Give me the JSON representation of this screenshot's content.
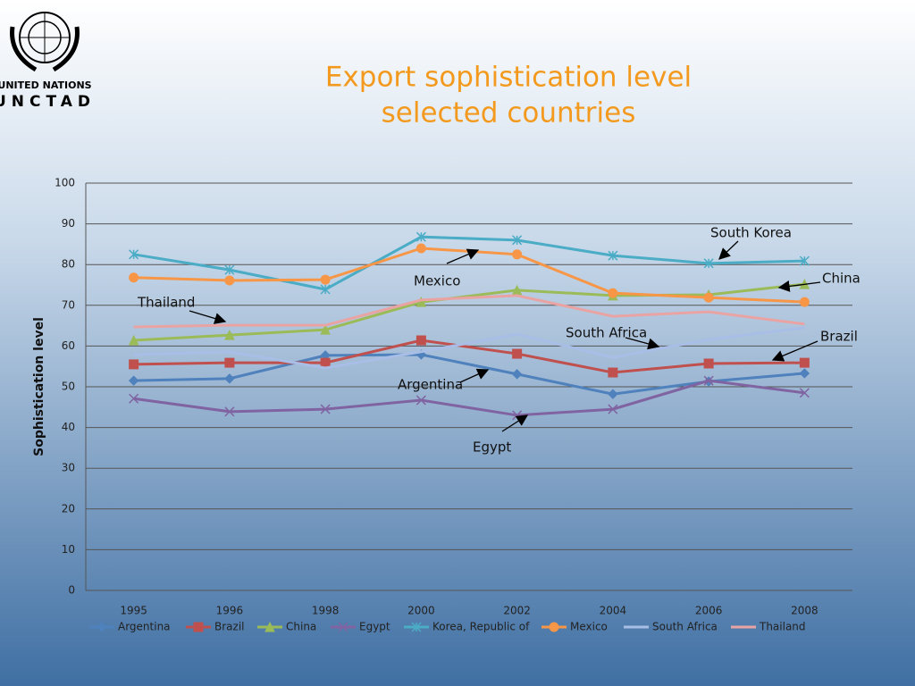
{
  "logo": {
    "line1": "UNITED NATIONS",
    "line2": "UNCTAD"
  },
  "chart_data": {
    "type": "line",
    "title": [
      "Export sophistication level",
      "selected countries"
    ],
    "y_label": "Sophistication level",
    "categories": [
      "1995",
      "1996",
      "1998",
      "2000",
      "2002",
      "2004",
      "2006",
      "2008"
    ],
    "ylim": [
      0,
      100
    ],
    "yticks": [
      0,
      10,
      20,
      30,
      40,
      50,
      60,
      70,
      80,
      90,
      100
    ],
    "grid": true,
    "legend": "bottom",
    "series": [
      {
        "name": "Argentina",
        "color": "#4f81bd",
        "marker": "diamond",
        "values": [
          51.5,
          52.0,
          57.7,
          57.9,
          53.1,
          48.2,
          51.3,
          53.3
        ]
      },
      {
        "name": "Brazil",
        "color": "#c0504d",
        "marker": "square",
        "values": [
          55.5,
          55.9,
          55.9,
          61.4,
          58.1,
          53.5,
          55.7,
          55.9
        ]
      },
      {
        "name": "China",
        "color": "#9bbb59",
        "marker": "triangle",
        "values": [
          61.4,
          62.7,
          64.0,
          70.8,
          73.7,
          72.4,
          72.6,
          75.2
        ]
      },
      {
        "name": "Egypt",
        "color": "#8064a2",
        "marker": "x",
        "values": [
          47.1,
          43.9,
          44.5,
          46.7,
          43.0,
          44.5,
          51.5,
          48.5
        ]
      },
      {
        "name": "Korea, Republic of",
        "color": "#4bacc6",
        "marker": "star",
        "values": [
          82.5,
          78.7,
          73.9,
          86.8,
          86.0,
          82.2,
          80.3,
          80.9
        ]
      },
      {
        "name": "Mexico",
        "color": "#f79646",
        "marker": "circle",
        "values": [
          76.8,
          76.1,
          76.3,
          84.0,
          82.5,
          73.0,
          71.9,
          70.8
        ]
      },
      {
        "name": "South Africa",
        "color": "#a9bee6",
        "marker": "none",
        "values": [
          57.9,
          58.6,
          54.6,
          58.6,
          62.9,
          57.2,
          61.6,
          64.5
        ]
      },
      {
        "name": "Thailand",
        "color": "#e9a3a3",
        "marker": "none",
        "values": [
          64.7,
          65.1,
          65.1,
          71.3,
          72.4,
          67.3,
          68.4,
          65.4
        ]
      }
    ],
    "annotations": [
      "South Korea",
      "China",
      "Thailand",
      "Mexico",
      "South Africa",
      "Brazil",
      "Argentina",
      "Egypt"
    ]
  }
}
